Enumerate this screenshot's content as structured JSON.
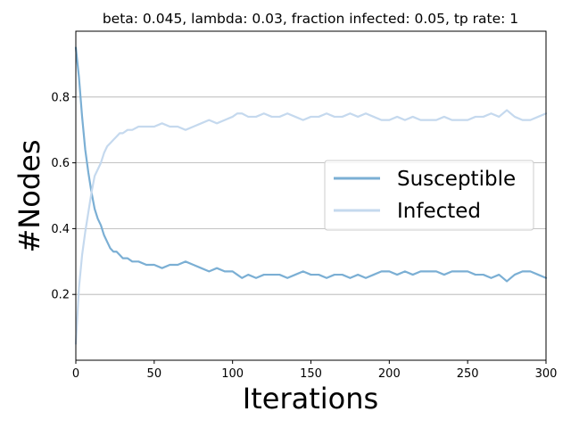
{
  "chart_data": {
    "type": "line",
    "title": "beta: 0.045, lambda: 0.03, fraction infected: 0.05, tp rate: 1",
    "xlabel": "Iterations",
    "ylabel": "#Nodes",
    "xlim": [
      0,
      300
    ],
    "ylim": [
      0.0,
      1.0
    ],
    "x_ticks": [
      0,
      50,
      100,
      150,
      200,
      250,
      300
    ],
    "y_ticks": [
      0.2,
      0.4,
      0.6,
      0.8
    ],
    "y_grid": true,
    "x_grid": false,
    "legend_position": "center-right",
    "series": [
      {
        "name": "Susceptible",
        "color": "#7bafd4",
        "x": [
          0,
          2,
          4,
          6,
          8,
          10,
          12,
          14,
          16,
          18,
          20,
          22,
          24,
          26,
          28,
          30,
          33,
          36,
          40,
          45,
          50,
          55,
          60,
          65,
          70,
          75,
          80,
          85,
          90,
          95,
          100,
          103,
          106,
          110,
          115,
          120,
          125,
          130,
          135,
          140,
          145,
          150,
          155,
          160,
          165,
          170,
          175,
          180,
          185,
          190,
          195,
          200,
          205,
          210,
          215,
          220,
          225,
          230,
          235,
          240,
          245,
          250,
          255,
          260,
          265,
          270,
          275,
          280,
          285,
          290,
          295,
          300
        ],
        "y": [
          0.95,
          0.86,
          0.74,
          0.64,
          0.57,
          0.51,
          0.46,
          0.43,
          0.41,
          0.38,
          0.36,
          0.34,
          0.33,
          0.33,
          0.32,
          0.31,
          0.31,
          0.3,
          0.3,
          0.29,
          0.29,
          0.28,
          0.29,
          0.29,
          0.3,
          0.29,
          0.28,
          0.27,
          0.28,
          0.27,
          0.27,
          0.26,
          0.25,
          0.26,
          0.25,
          0.26,
          0.26,
          0.26,
          0.25,
          0.26,
          0.27,
          0.26,
          0.26,
          0.25,
          0.26,
          0.26,
          0.25,
          0.26,
          0.25,
          0.26,
          0.27,
          0.27,
          0.26,
          0.27,
          0.26,
          0.27,
          0.27,
          0.27,
          0.26,
          0.27,
          0.27,
          0.27,
          0.26,
          0.26,
          0.25,
          0.26,
          0.24,
          0.26,
          0.27,
          0.27,
          0.26,
          0.25
        ]
      },
      {
        "name": "Infected",
        "color": "#c5d9ee",
        "x": [
          0,
          2,
          4,
          6,
          8,
          10,
          12,
          14,
          16,
          18,
          20,
          22,
          24,
          26,
          28,
          30,
          33,
          36,
          40,
          45,
          50,
          55,
          60,
          65,
          70,
          75,
          80,
          85,
          90,
          95,
          100,
          103,
          106,
          110,
          115,
          120,
          125,
          130,
          135,
          140,
          145,
          150,
          155,
          160,
          165,
          170,
          175,
          180,
          185,
          190,
          195,
          200,
          205,
          210,
          215,
          220,
          225,
          230,
          235,
          240,
          245,
          250,
          255,
          260,
          265,
          270,
          275,
          280,
          285,
          290,
          295,
          300
        ],
        "y": [
          0.05,
          0.22,
          0.32,
          0.39,
          0.45,
          0.51,
          0.56,
          0.58,
          0.6,
          0.63,
          0.65,
          0.66,
          0.67,
          0.68,
          0.69,
          0.69,
          0.7,
          0.7,
          0.71,
          0.71,
          0.71,
          0.72,
          0.71,
          0.71,
          0.7,
          0.71,
          0.72,
          0.73,
          0.72,
          0.73,
          0.74,
          0.75,
          0.75,
          0.74,
          0.74,
          0.75,
          0.74,
          0.74,
          0.75,
          0.74,
          0.73,
          0.74,
          0.74,
          0.75,
          0.74,
          0.74,
          0.75,
          0.74,
          0.75,
          0.74,
          0.73,
          0.73,
          0.74,
          0.73,
          0.74,
          0.73,
          0.73,
          0.73,
          0.74,
          0.73,
          0.73,
          0.73,
          0.74,
          0.74,
          0.75,
          0.74,
          0.76,
          0.74,
          0.73,
          0.73,
          0.74,
          0.75
        ]
      }
    ]
  }
}
